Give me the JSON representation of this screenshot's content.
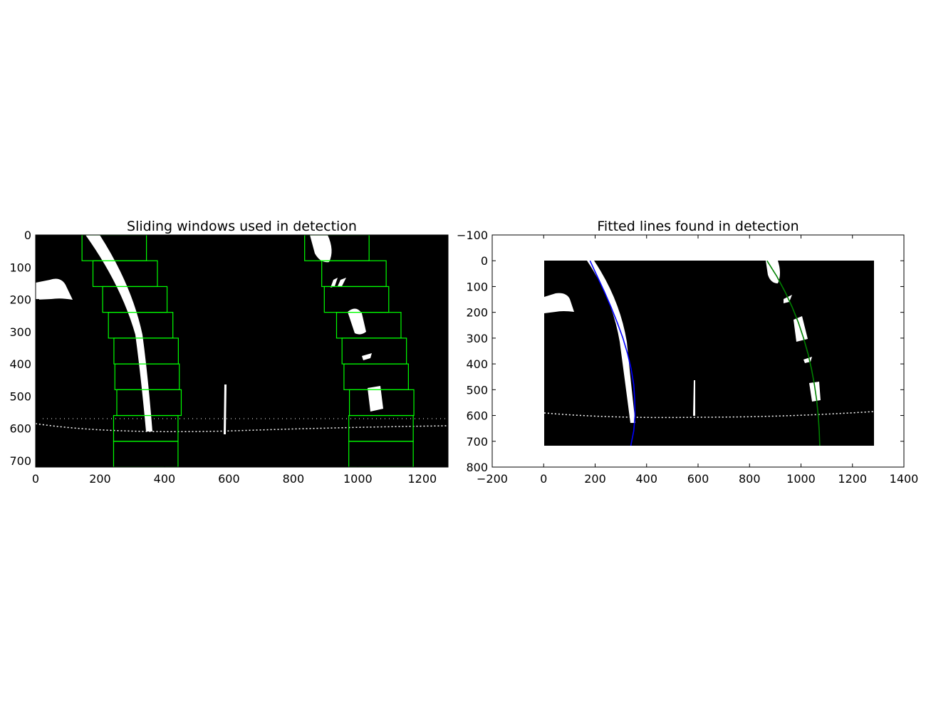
{
  "chart_data": [
    {
      "type": "image",
      "title": "Sliding windows used in detection",
      "xlim": [
        0,
        1280
      ],
      "ylim": [
        720,
        0
      ],
      "x_ticks": [
        0,
        200,
        400,
        600,
        800,
        1000,
        1200
      ],
      "y_ticks": [
        0,
        100,
        200,
        300,
        400,
        500,
        600,
        700
      ],
      "window_color": "#00ff00",
      "lane_color": "#ffffff",
      "background_color": "#000000",
      "sliding_windows": {
        "height": 80,
        "left": [
          {
            "x0": 144,
            "x1": 344,
            "y0": 0,
            "y1": 80
          },
          {
            "x0": 178,
            "x1": 378,
            "y0": 80,
            "y1": 160
          },
          {
            "x0": 208,
            "x1": 408,
            "y0": 160,
            "y1": 240
          },
          {
            "x0": 226,
            "x1": 426,
            "y0": 240,
            "y1": 320
          },
          {
            "x0": 243,
            "x1": 443,
            "y0": 320,
            "y1": 400
          },
          {
            "x0": 246,
            "x1": 446,
            "y0": 400,
            "y1": 480
          },
          {
            "x0": 252,
            "x1": 452,
            "y0": 480,
            "y1": 560
          },
          {
            "x0": 242,
            "x1": 442,
            "y0": 560,
            "y1": 640
          },
          {
            "x0": 242,
            "x1": 442,
            "y0": 640,
            "y1": 720
          }
        ],
        "right": [
          {
            "x0": 835,
            "x1": 1035,
            "y0": 0,
            "y1": 80
          },
          {
            "x0": 888,
            "x1": 1088,
            "y0": 80,
            "y1": 160
          },
          {
            "x0": 896,
            "x1": 1096,
            "y0": 160,
            "y1": 240
          },
          {
            "x0": 934,
            "x1": 1134,
            "y0": 240,
            "y1": 320
          },
          {
            "x0": 951,
            "x1": 1151,
            "y0": 320,
            "y1": 400
          },
          {
            "x0": 957,
            "x1": 1157,
            "y0": 400,
            "y1": 480
          },
          {
            "x0": 974,
            "x1": 1174,
            "y0": 480,
            "y1": 560
          },
          {
            "x0": 972,
            "x1": 1172,
            "y0": 560,
            "y1": 640
          },
          {
            "x0": 972,
            "x1": 1172,
            "y0": 640,
            "y1": 720
          }
        ]
      }
    },
    {
      "type": "line",
      "title": "Fitted lines found in detection",
      "xlim": [
        -200,
        1400
      ],
      "ylim": [
        800,
        -100
      ],
      "x_ticks": [
        -200,
        0,
        200,
        400,
        600,
        800,
        1000,
        1200,
        1400
      ],
      "y_ticks": [
        -100,
        0,
        100,
        200,
        300,
        400,
        500,
        600,
        700,
        800
      ],
      "x_tick_labels": [
        "−200",
        "0",
        "200",
        "400",
        "600",
        "800",
        "1000",
        "1200",
        "1400"
      ],
      "y_tick_labels": [
        "−100",
        "0",
        "100",
        "200",
        "300",
        "400",
        "500",
        "600",
        "700",
        "800"
      ],
      "image_extent": {
        "x": [
          0,
          1280
        ],
        "y": [
          0,
          720
        ]
      },
      "series": [
        {
          "color": "#0000ff",
          "x": [
            180,
            208,
            236,
            262,
            286,
            308,
            326,
            340,
            350,
            354,
            355,
            350,
            338
          ],
          "y": [
            0,
            60,
            120,
            180,
            240,
            300,
            360,
            420,
            480,
            540,
            600,
            660,
            720
          ]
        },
        {
          "color": "#008000",
          "x": [
            868,
            906,
            938,
            966,
            990,
            1010,
            1027,
            1041,
            1052,
            1061,
            1067,
            1071,
            1073
          ],
          "y": [
            0,
            60,
            120,
            180,
            240,
            300,
            360,
            420,
            480,
            540,
            600,
            660,
            720
          ]
        }
      ]
    }
  ]
}
